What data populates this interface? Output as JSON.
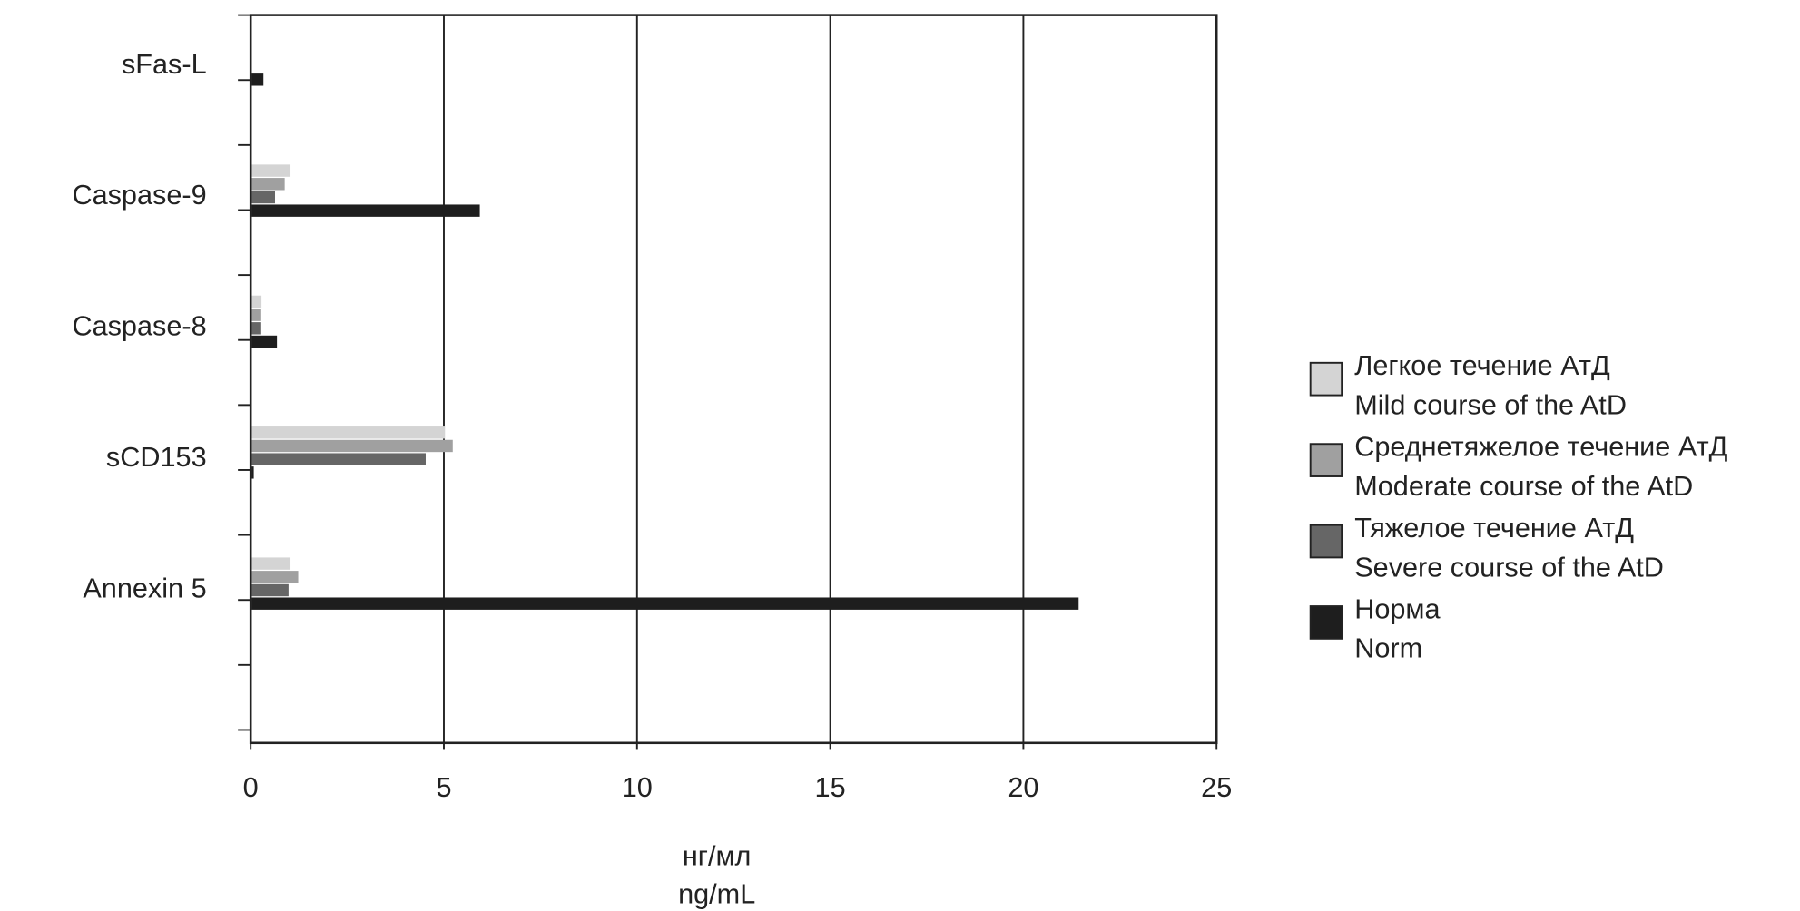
{
  "chart_data": {
    "type": "hbar",
    "categories": [
      "sFas-L",
      "Caspase-9",
      "Caspase-8",
      "sCD153",
      "Annexin 5"
    ],
    "series": [
      {
        "name": [
          "Легкое течение АтД",
          "Mild course of the AtD"
        ],
        "color": "#d4d4d4",
        "values": [
          0,
          1.0,
          0.25,
          5.0,
          1.0
        ]
      },
      {
        "name": [
          "Среднетяжелое течение АтД",
          "Moderate course of the AtD"
        ],
        "color": "#a0a0a0",
        "values": [
          0,
          0.85,
          0.22,
          5.2,
          1.2
        ]
      },
      {
        "name": [
          "Тяжелое течение АтД",
          "Severe course of the AtD"
        ],
        "color": "#666666",
        "values": [
          0,
          0.6,
          0.22,
          4.5,
          0.95
        ]
      },
      {
        "name": [
          "Норма",
          "Norm"
        ],
        "color": "#1e1e1e",
        "values": [
          0.3,
          5.9,
          0.65,
          0.05,
          21.4
        ]
      }
    ],
    "xlabel": [
      "нг/мл",
      "ng/mL"
    ],
    "xlim": [
      0,
      25
    ],
    "xticks": [
      0,
      5,
      10,
      15,
      20,
      25
    ],
    "grid": true
  }
}
